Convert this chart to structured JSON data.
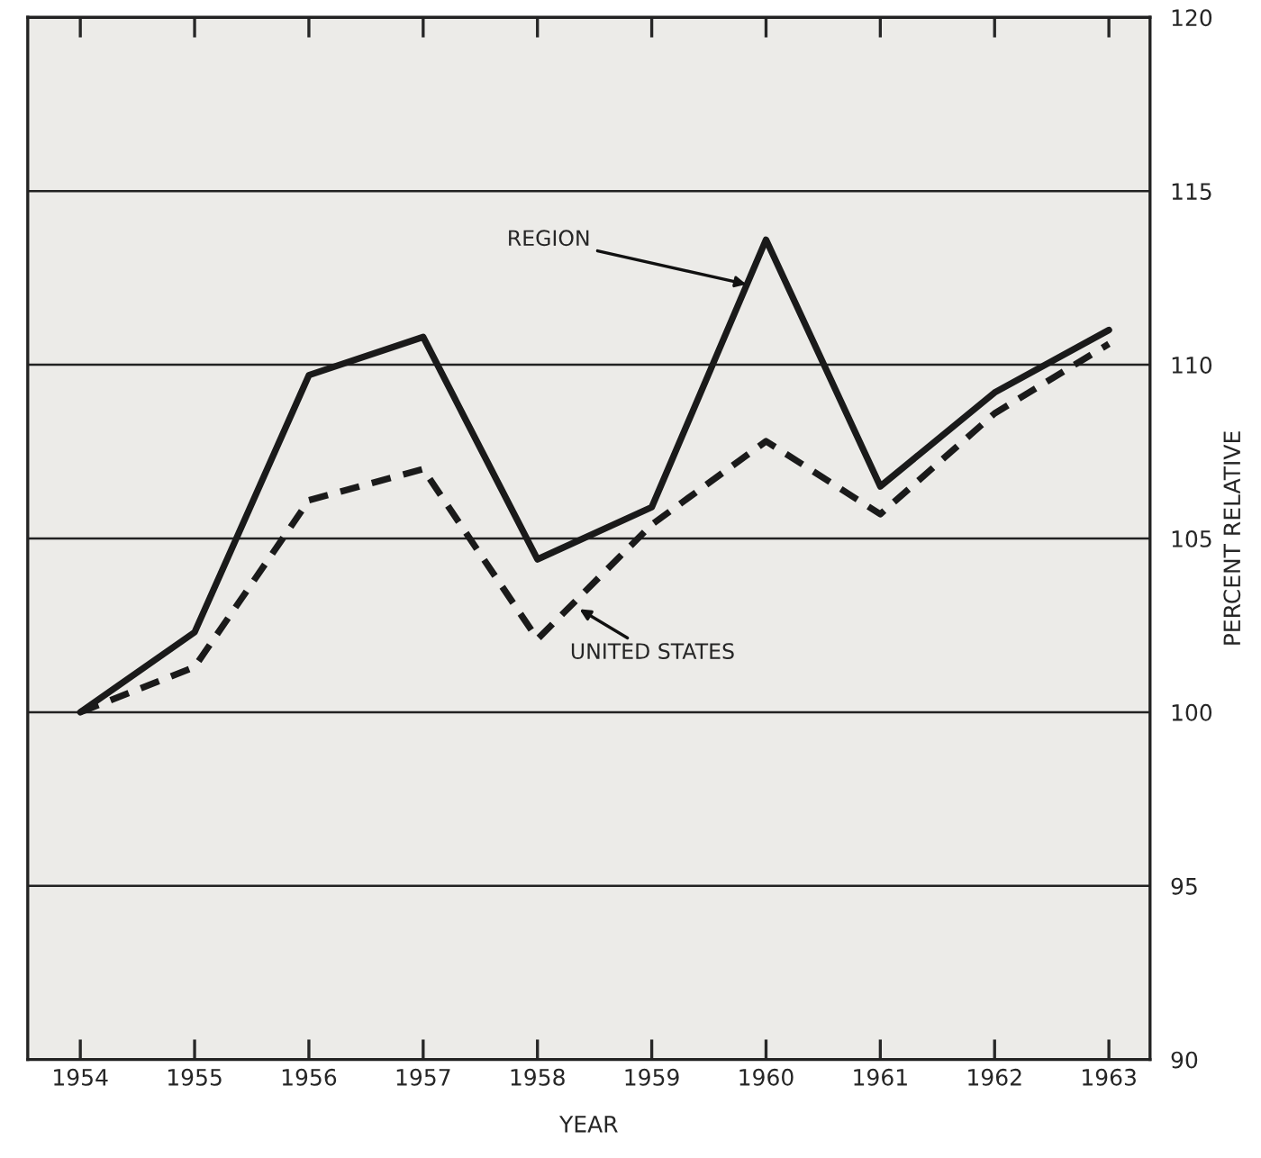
{
  "chart_data": {
    "type": "line",
    "xlabel": "YEAR",
    "ylabel": "PERCENT RELATIVE",
    "x": [
      1954,
      1955,
      1956,
      1957,
      1958,
      1959,
      1960,
      1961,
      1962,
      1963
    ],
    "series": [
      {
        "color": "#1a1a1a",
        "line_style": "solid",
        "values": [
          100,
          102.3,
          109.7,
          110.8,
          104.4,
          105.9,
          113.6,
          106.5,
          109.2,
          111.0
        ]
      },
      {
        "color": "#1a1a1a",
        "line_style": "dashed",
        "values": [
          100,
          101.3,
          106.1,
          107.0,
          102.1,
          105.4,
          107.8,
          105.7,
          108.6,
          110.6
        ]
      }
    ],
    "annotations": [
      {
        "text": "REGION",
        "x": 1959.85,
        "y": 112.3
      },
      {
        "text": "UNITED STATES",
        "x": 1958.35,
        "y": 103.0
      }
    ],
    "xlim": [
      1953.54,
      1963.36
    ],
    "xticks": [
      1954,
      1955,
      1956,
      1957,
      1958,
      1959,
      1960,
      1961,
      1962,
      1963
    ],
    "ylim": [
      90,
      120
    ],
    "yticks": [
      90,
      95,
      100,
      105,
      110,
      115,
      120
    ],
    "grid": "y",
    "legend": false,
    "marker": "none"
  }
}
